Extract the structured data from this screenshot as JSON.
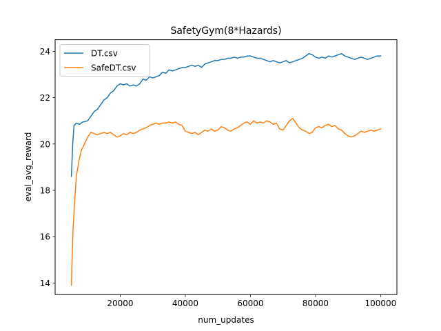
{
  "chart_data": {
    "type": "line",
    "title": "SafetyGym(8*Hazards)",
    "xlabel": "num_updates",
    "ylabel": "eval_avg_reward",
    "xlim": [
      0,
      105000
    ],
    "ylim": [
      13.5,
      24.5
    ],
    "xticks": [
      20000,
      40000,
      60000,
      80000,
      100000
    ],
    "yticks": [
      14,
      16,
      18,
      20,
      22,
      24
    ],
    "grid": false,
    "legend_position": "top-left",
    "series": [
      {
        "name": "DT.csv",
        "color": "#1f77b4",
        "x": [
          5000,
          5400,
          5800,
          6500,
          7500,
          8500,
          10000,
          11000,
          12000,
          13000,
          14000,
          15000,
          16000,
          17000,
          18000,
          19000,
          20000,
          21000,
          22000,
          23000,
          24000,
          25000,
          26000,
          27000,
          28000,
          29000,
          30000,
          31000,
          32000,
          33000,
          34000,
          35000,
          36000,
          37000,
          38000,
          39000,
          40000,
          41000,
          42000,
          43000,
          44000,
          45000,
          46000,
          47000,
          48000,
          49000,
          50000,
          51000,
          52000,
          53000,
          54000,
          55000,
          56000,
          57000,
          58000,
          59000,
          60000,
          61000,
          62000,
          63000,
          64000,
          65000,
          66000,
          67000,
          68000,
          69000,
          70000,
          71000,
          72000,
          73000,
          74000,
          75000,
          76000,
          77000,
          78000,
          79000,
          80000,
          81000,
          82000,
          83000,
          84000,
          85000,
          86000,
          87000,
          88000,
          89000,
          90000,
          91000,
          92000,
          93000,
          94000,
          95000,
          96000,
          97000,
          98000,
          99000,
          100000
        ],
        "y": [
          18.6,
          20.0,
          20.8,
          20.9,
          20.85,
          20.95,
          21.0,
          21.2,
          21.4,
          21.5,
          21.7,
          21.9,
          22.0,
          22.2,
          22.3,
          22.5,
          22.6,
          22.55,
          22.6,
          22.5,
          22.55,
          22.5,
          22.6,
          22.8,
          22.75,
          22.9,
          22.85,
          22.9,
          22.95,
          23.1,
          23.05,
          23.2,
          23.15,
          23.2,
          23.25,
          23.3,
          23.3,
          23.35,
          23.4,
          23.35,
          23.4,
          23.3,
          23.45,
          23.5,
          23.55,
          23.6,
          23.6,
          23.65,
          23.65,
          23.7,
          23.7,
          23.75,
          23.7,
          23.75,
          23.75,
          23.8,
          23.8,
          23.75,
          23.7,
          23.7,
          23.65,
          23.6,
          23.55,
          23.6,
          23.55,
          23.5,
          23.55,
          23.6,
          23.5,
          23.55,
          23.6,
          23.65,
          23.7,
          23.8,
          23.9,
          23.85,
          23.75,
          23.7,
          23.75,
          23.7,
          23.8,
          23.75,
          23.8,
          23.85,
          23.9,
          23.8,
          23.75,
          23.7,
          23.65,
          23.7,
          23.75,
          23.7,
          23.65,
          23.7,
          23.75,
          23.8,
          23.8
        ]
      },
      {
        "name": "SafeDT.csv",
        "color": "#ff7f0e",
        "x": [
          5000,
          5200,
          5500,
          6000,
          6500,
          7000,
          7500,
          8000,
          9000,
          10000,
          11000,
          12000,
          13000,
          14000,
          15000,
          16000,
          17000,
          18000,
          19000,
          20000,
          21000,
          22000,
          23000,
          24000,
          25000,
          26000,
          27000,
          28000,
          29000,
          30000,
          31000,
          32000,
          33000,
          34000,
          35000,
          36000,
          37000,
          38000,
          39000,
          40000,
          41000,
          42000,
          43000,
          44000,
          45000,
          46000,
          47000,
          48000,
          49000,
          50000,
          51000,
          52000,
          53000,
          54000,
          55000,
          56000,
          57000,
          58000,
          59000,
          60000,
          61000,
          62000,
          63000,
          64000,
          65000,
          66000,
          67000,
          68000,
          69000,
          70000,
          71000,
          72000,
          73000,
          74000,
          75000,
          76000,
          77000,
          78000,
          79000,
          80000,
          81000,
          82000,
          83000,
          84000,
          85000,
          86000,
          87000,
          88000,
          89000,
          90000,
          91000,
          92000,
          93000,
          94000,
          95000,
          96000,
          97000,
          98000,
          99000,
          100000
        ],
        "y": [
          13.9,
          15.0,
          16.3,
          17.5,
          18.6,
          19.0,
          19.4,
          19.7,
          20.0,
          20.3,
          20.5,
          20.45,
          20.4,
          20.45,
          20.5,
          20.45,
          20.5,
          20.4,
          20.3,
          20.35,
          20.45,
          20.4,
          20.5,
          20.45,
          20.5,
          20.6,
          20.65,
          20.7,
          20.8,
          20.85,
          20.9,
          20.85,
          20.9,
          20.9,
          20.95,
          20.9,
          20.95,
          20.85,
          20.8,
          20.55,
          20.5,
          20.45,
          20.5,
          20.4,
          20.5,
          20.6,
          20.55,
          20.65,
          20.55,
          20.6,
          20.75,
          20.7,
          20.6,
          20.55,
          20.65,
          20.7,
          20.8,
          20.9,
          20.95,
          20.85,
          21.0,
          20.9,
          20.95,
          20.9,
          21.0,
          20.95,
          20.85,
          20.9,
          20.65,
          20.6,
          20.8,
          21.0,
          21.1,
          20.9,
          20.7,
          20.6,
          20.55,
          20.45,
          20.5,
          20.7,
          20.75,
          20.7,
          20.8,
          20.85,
          20.75,
          20.8,
          20.65,
          20.6,
          20.45,
          20.35,
          20.3,
          20.35,
          20.45,
          20.55,
          20.5,
          20.55,
          20.6,
          20.55,
          20.6,
          20.65
        ]
      }
    ]
  }
}
